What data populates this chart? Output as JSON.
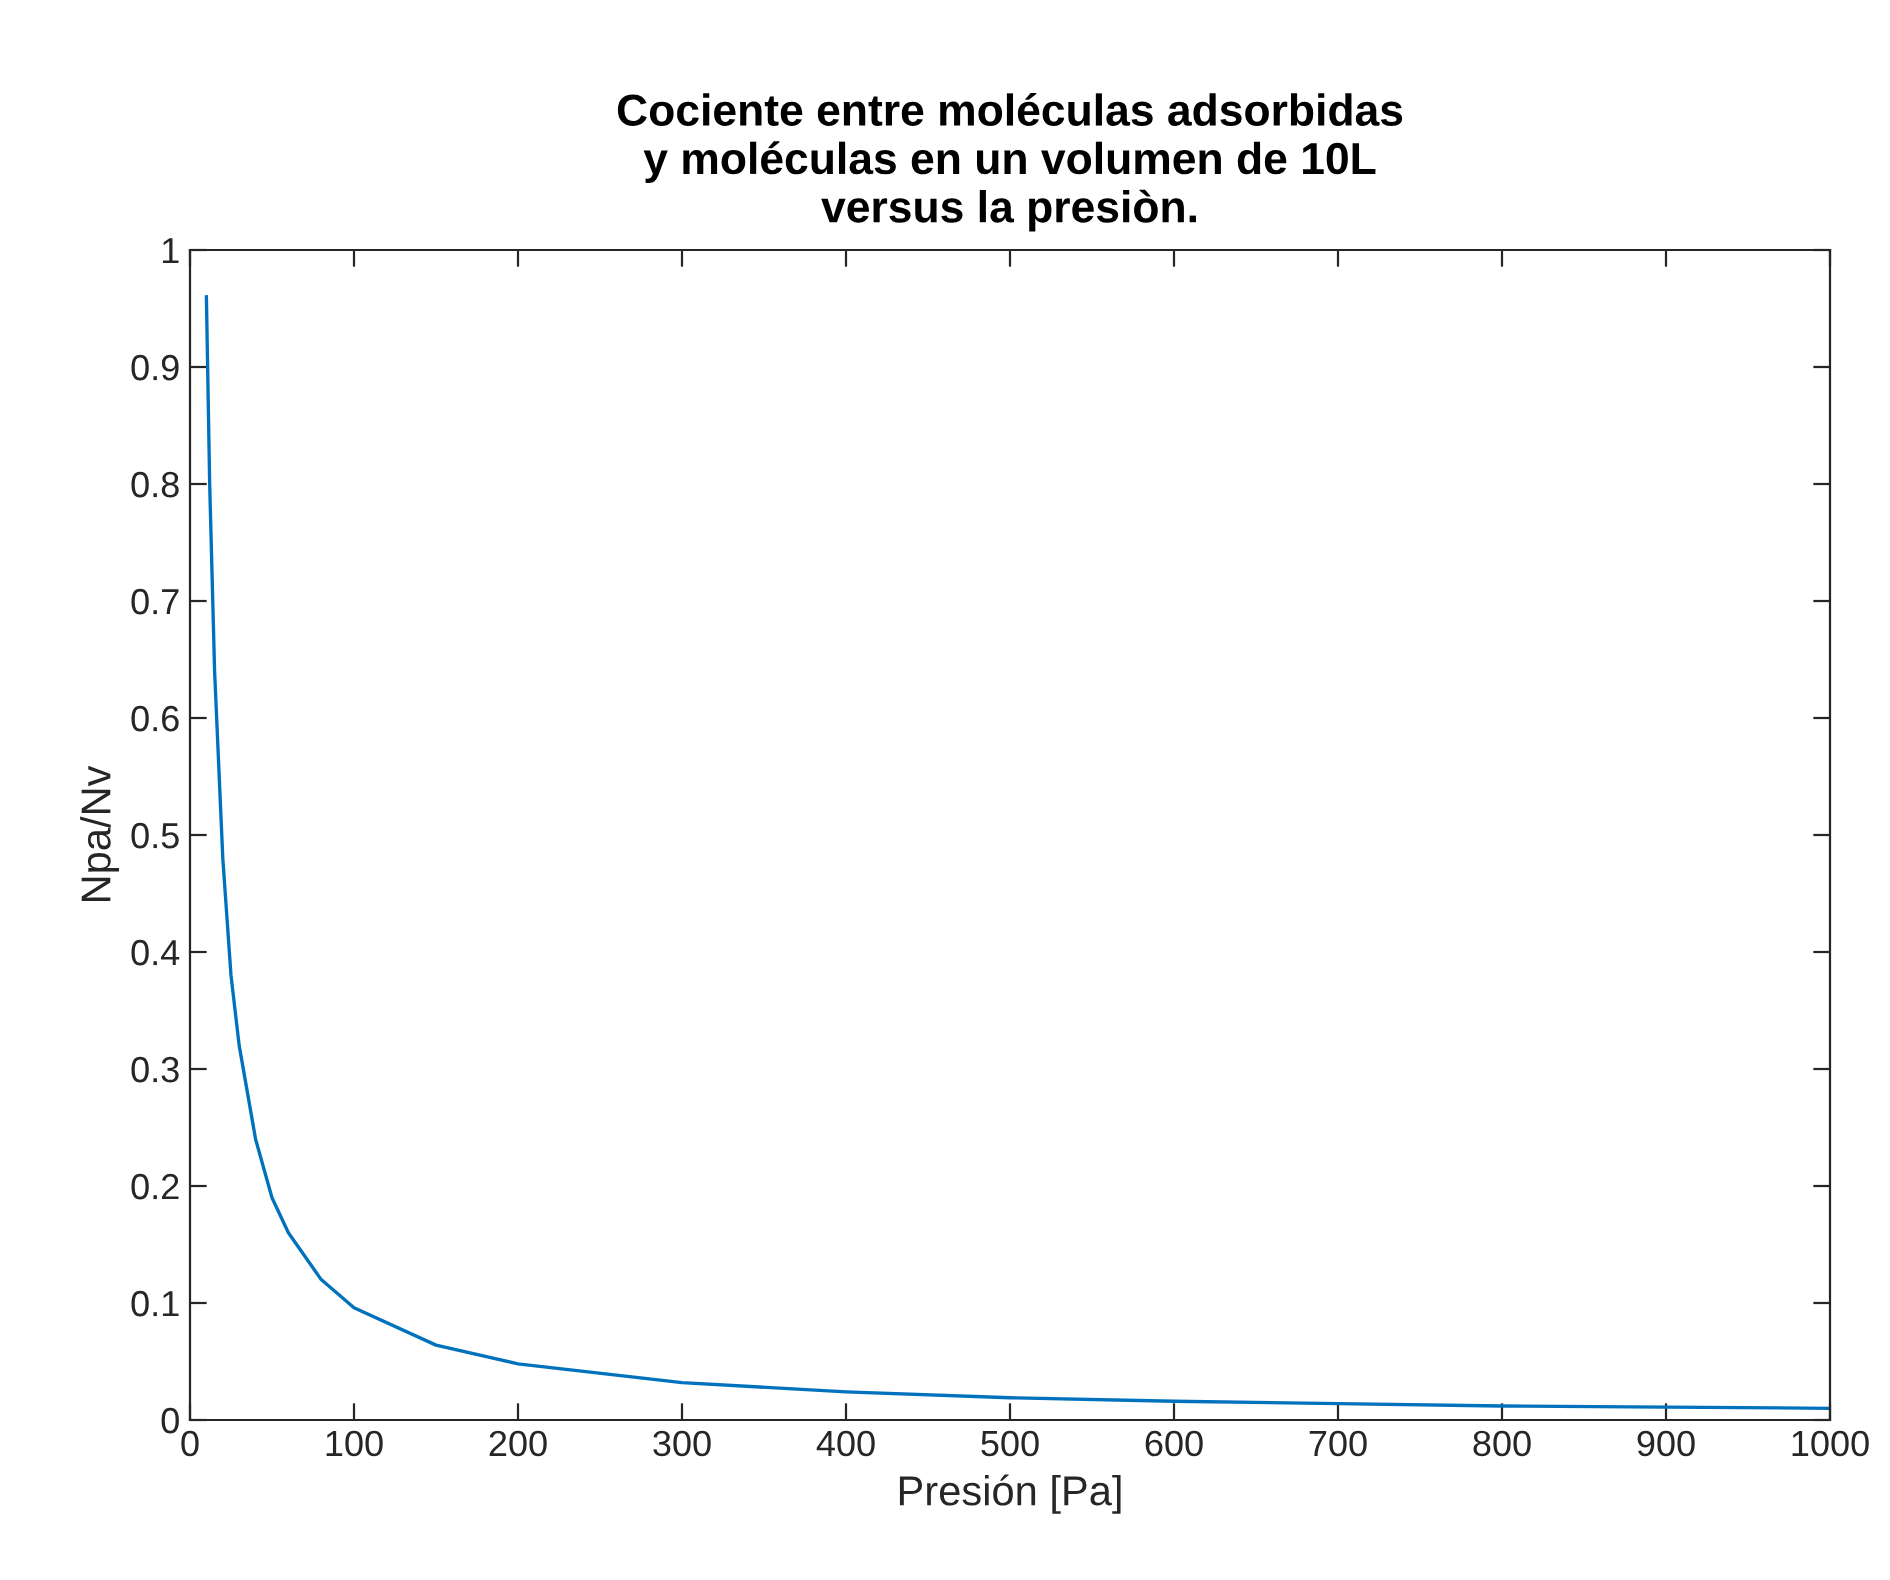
{
  "chart_data": {
    "type": "line",
    "title": "Cociente entre moléculas adsorbidas\ny moléculas en un volumen de 10L\nversus la presiòn.",
    "xlabel": "Presión [Pa]",
    "ylabel": "Npa/Nv",
    "series": [
      {
        "color": "#0072bd",
        "x": [
          10,
          12,
          15,
          20,
          25,
          30,
          40,
          50,
          60,
          80,
          100,
          150,
          200,
          300,
          400,
          500,
          600,
          700,
          800,
          900,
          1000
        ],
        "values": [
          0.96,
          0.8,
          0.64,
          0.48,
          0.38,
          0.32,
          0.24,
          0.19,
          0.16,
          0.12,
          0.096,
          0.064,
          0.048,
          0.032,
          0.024,
          0.019,
          0.016,
          0.014,
          0.012,
          0.011,
          0.01
        ]
      }
    ],
    "xlim": [
      0,
      1000
    ],
    "xticks": [
      0,
      100,
      200,
      300,
      400,
      500,
      600,
      700,
      800,
      900,
      1000
    ],
    "ylim": [
      0,
      1
    ],
    "yticks": [
      0,
      0.1,
      0.2,
      0.3,
      0.4,
      0.5,
      0.6,
      0.7,
      0.8,
      0.9,
      1
    ],
    "grid": false,
    "legend": false
  }
}
